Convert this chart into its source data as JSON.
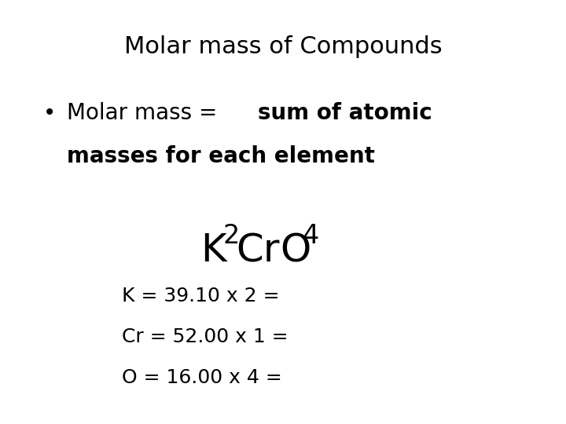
{
  "background_color": "#ffffff",
  "title": "Molar mass of Compounds",
  "title_fontsize": 22,
  "title_color": "#000000",
  "bullet_fontsize": 20,
  "formula_fontsize": 36,
  "formula_sub_fontsize": 24,
  "calc_fontsize": 18,
  "calc_lines": [
    "K = 39.10 x 2 =",
    "Cr = 52.00 x 1 =",
    "O = 16.00 x 4 ="
  ]
}
